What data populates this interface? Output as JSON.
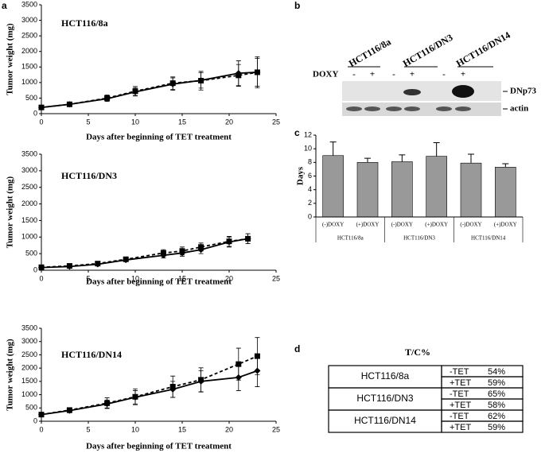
{
  "panel_labels": [
    "a",
    "b",
    "c",
    "d"
  ],
  "chart_data": [
    {
      "type": "line",
      "title": "HCT116/8a",
      "xlabel": "Days after beginning of TET treatment",
      "ylabel": "Tumor weight (mg)",
      "x": [
        0,
        3,
        7,
        10,
        14,
        17,
        21,
        23
      ],
      "series": [
        {
          "color": "#000000",
          "marker": "diamond",
          "linestyle": "solid",
          "values": [
            200,
            300,
            480,
            700,
            950,
            1070,
            1300,
            1330
          ],
          "errors": [
            20,
            50,
            80,
            120,
            200,
            250,
            400,
            450
          ]
        },
        {
          "color": "#000000",
          "marker": "square",
          "linestyle": "dashed",
          "values": [
            200,
            300,
            500,
            720,
            980,
            1060,
            1230,
            1330
          ],
          "errors": [
            20,
            50,
            100,
            150,
            200,
            300,
            350,
            500
          ]
        }
      ],
      "xlim": [
        0,
        25
      ],
      "xticks": [
        0,
        5,
        10,
        15,
        20,
        25
      ],
      "ylim": [
        0,
        3500
      ],
      "yticks": [
        0,
        500,
        1000,
        1500,
        2000,
        2500,
        3000,
        3500
      ]
    },
    {
      "type": "line",
      "title": "HCT116/DN3",
      "xlabel": "Days after beginning of TET treatment",
      "ylabel": "Tumor weight (mg)",
      "x": [
        0,
        3,
        6,
        9,
        13,
        15,
        17,
        20,
        22
      ],
      "series": [
        {
          "color": "#000000",
          "marker": "diamond",
          "linestyle": "solid",
          "values": [
            80,
            110,
            180,
            310,
            450,
            520,
            620,
            850,
            950
          ],
          "errors": [
            20,
            30,
            40,
            50,
            80,
            100,
            120,
            150,
            150
          ]
        },
        {
          "color": "#000000",
          "marker": "square",
          "linestyle": "dashed",
          "values": [
            90,
            130,
            200,
            330,
            520,
            580,
            700,
            870,
            950
          ],
          "errors": [
            20,
            30,
            40,
            50,
            100,
            120,
            120,
            150,
            150
          ]
        }
      ],
      "xlim": [
        0,
        25
      ],
      "xticks": [
        0,
        5,
        10,
        15,
        20,
        25
      ],
      "ylim": [
        0,
        3500
      ],
      "yticks": [
        0,
        500,
        1000,
        1500,
        2000,
        2500,
        3000,
        3500
      ]
    },
    {
      "type": "line",
      "title": "HCT116/DN14",
      "xlabel": "Days after beginning of TET treatment",
      "ylabel": "Tumor weight (mg)",
      "x": [
        0,
        3,
        7,
        10,
        14,
        17,
        21,
        23
      ],
      "series": [
        {
          "color": "#000000",
          "marker": "diamond",
          "linestyle": "solid",
          "values": [
            250,
            400,
            650,
            900,
            1200,
            1500,
            1650,
            1900
          ],
          "errors": [
            30,
            80,
            150,
            250,
            300,
            400,
            500,
            600
          ]
        },
        {
          "color": "#000000",
          "marker": "square",
          "linestyle": "dashed",
          "values": [
            250,
            420,
            680,
            920,
            1300,
            1560,
            2150,
            2450
          ],
          "errors": [
            30,
            80,
            200,
            300,
            400,
            450,
            600,
            700
          ]
        }
      ],
      "xlim": [
        0,
        25
      ],
      "xticks": [
        0,
        5,
        10,
        15,
        20,
        25
      ],
      "ylim": [
        0,
        3500
      ],
      "yticks": [
        0,
        500,
        1000,
        1500,
        2000,
        2500,
        3000,
        3500
      ]
    },
    {
      "type": "bar",
      "ylabel": "Days",
      "categories": [
        "(-)DOXY",
        "(+)DOXY",
        "(-)DOXY",
        "(+)DOXY",
        "(-)DOXY",
        "(+)DOXY"
      ],
      "groups": [
        "HCT116/8a",
        "HCT116/DN3",
        "HCT116/DN14"
      ],
      "values": [
        9,
        8,
        8.1,
        8.9,
        7.9,
        7.3
      ],
      "errors": [
        2,
        0.6,
        1,
        2,
        1.3,
        0.5
      ],
      "color": "#999999",
      "ylim": [
        0,
        12
      ],
      "yticks": [
        0,
        2,
        4,
        6,
        8,
        10,
        12
      ]
    }
  ],
  "blot": {
    "column_groups": [
      "HCT116/8a",
      "HCT116/DN3",
      "HCT116/DN14"
    ],
    "treatment_label": "DOXY",
    "lanes": [
      "-",
      "+",
      "-",
      "+",
      "-",
      "+"
    ],
    "bands": [
      "DNp73",
      "actin"
    ]
  },
  "table": {
    "title": "T/C%",
    "groups": [
      {
        "name": "HCT116/8a",
        "rows": [
          [
            "-TET",
            "54%"
          ],
          [
            "+TET",
            "59%"
          ]
        ]
      },
      {
        "name": "HCT116/DN3",
        "rows": [
          [
            "-TET",
            "65%"
          ],
          [
            "+TET",
            "58%"
          ]
        ]
      },
      {
        "name": "HCT116/DN14",
        "rows": [
          [
            "-TET",
            "62%"
          ],
          [
            "+TET",
            "59%"
          ]
        ]
      }
    ]
  }
}
